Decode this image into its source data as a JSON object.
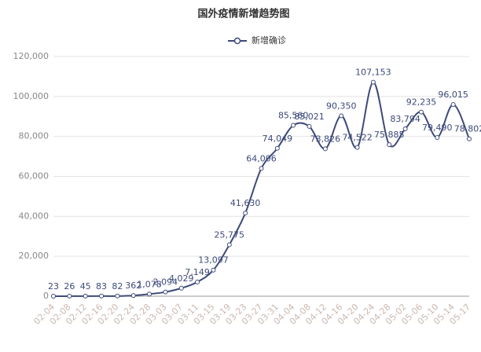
{
  "chart_data": {
    "type": "line",
    "title": "国外疫情新增趋势图",
    "categories": [
      "02-04",
      "02-08",
      "02-12",
      "02-16",
      "02-20",
      "02-24",
      "02-28",
      "03-03",
      "03-07",
      "03-11",
      "03-15",
      "03-19",
      "03-23",
      "03-27",
      "03-31",
      "04-04",
      "04-08",
      "04-12",
      "04-16",
      "04-20",
      "04-24",
      "04-28",
      "05-02",
      "05-06",
      "05-10",
      "05-14",
      "05-17"
    ],
    "series": [
      {
        "name": "新增确诊",
        "color": "#3d4a7a",
        "values": [
          23,
          26,
          45,
          83,
          82,
          362,
          1078,
          2094,
          4029,
          7149,
          13097,
          25775,
          41630,
          64006,
          74049,
          85560,
          85021,
          73826,
          90350,
          74522,
          107153,
          75885,
          83794,
          92235,
          79490,
          96015,
          78802
        ],
        "value_labels": [
          "23",
          "26",
          "45",
          "83",
          "82",
          "362",
          "1,078",
          "2,094",
          "4,029",
          "7,149",
          "13,097",
          "25,775",
          "41,630",
          "64,006",
          "74,049",
          "85,560",
          "85,021",
          "73,826",
          "90,350",
          "74,522",
          "107,153",
          "75,885",
          "83,794",
          "92,235",
          "79,490",
          "96,015",
          "78,802"
        ]
      }
    ],
    "ylim": [
      0,
      120000
    ],
    "yticks": [
      0,
      {
        "value": 20000,
        "label": "20,000"
      },
      {
        "value": 40000,
        "label": "40,000"
      },
      {
        "value": 60000,
        "label": "60,000"
      },
      {
        "value": 80000,
        "label": "80,000"
      },
      {
        "value": 100000,
        "label": "100,000"
      },
      {
        "value": 120000,
        "label": "120,000"
      }
    ],
    "grid": true
  }
}
